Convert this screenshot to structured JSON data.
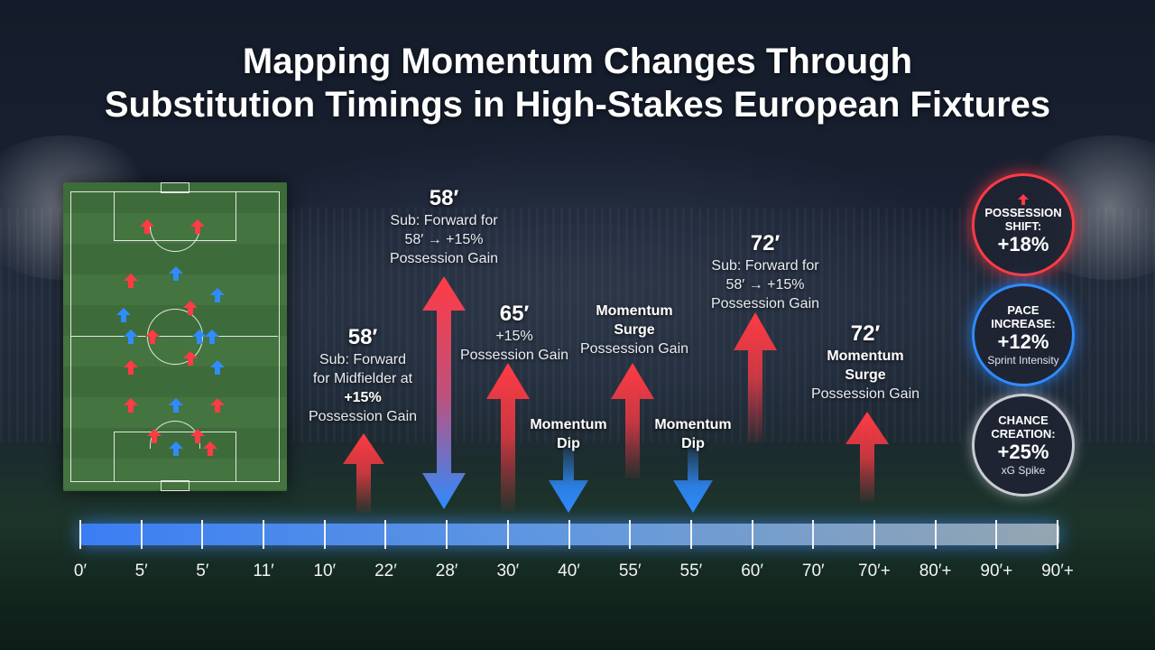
{
  "title_line1": "Mapping Momentum Changes Through",
  "title_line2": "Substitution Timings in High-Stakes European Fixtures",
  "colors": {
    "gain": "#ff3b44",
    "dip": "#2f8bff",
    "neutral": "#cfd3da"
  },
  "annotations": {
    "a1": {
      "time": "58′",
      "lines": [
        "Sub: Forward",
        "for Midfielder at",
        "+15%",
        "Possession Gain"
      ]
    },
    "a2": {
      "time": "58′",
      "lines": [
        "Sub: Forward for",
        "58′ → +15%",
        "Possession Gain"
      ]
    },
    "a3": {
      "time": "65′",
      "lines": [
        "+15%",
        "Possession Gain"
      ]
    },
    "a4": {
      "head1": "Momentum",
      "head2": "Dip"
    },
    "a5": {
      "head1": "Momentum",
      "head2": "Surge",
      "line": "Possession Gain"
    },
    "a6": {
      "head1": "Momentum",
      "head2": "Dip"
    },
    "a7": {
      "time": "72′",
      "lines": [
        "Sub: Forward for",
        "58′ → +15%",
        "Possession Gain"
      ]
    },
    "a8": {
      "time": "72′",
      "head1": "Momentum",
      "head2": "Surge",
      "line": "Possession Gain"
    }
  },
  "badges": [
    {
      "label1": "POSSESSION",
      "label2": "SHIFT:",
      "value": "+18%",
      "sub": "",
      "color": "#ff3b44",
      "icon": "up-arrow-icon"
    },
    {
      "label1": "PACE",
      "label2": "INCREASE:",
      "value": "+12%",
      "sub": "Sprint Intensity",
      "color": "#2f8bff",
      "icon": ""
    },
    {
      "label1": "CHANCE",
      "label2": "CREATION:",
      "value": "+25%",
      "sub": "xG Spike",
      "color": "#c9ccd2",
      "icon": ""
    }
  ],
  "timeline_labels": [
    "0′",
    "5′",
    "5′",
    "11′",
    "10′",
    "22′",
    "28′",
    "30′",
    "40′",
    "55′",
    "55′",
    "60′",
    "70′",
    "70′+",
    "80′+",
    "90′+",
    "90′+"
  ]
}
